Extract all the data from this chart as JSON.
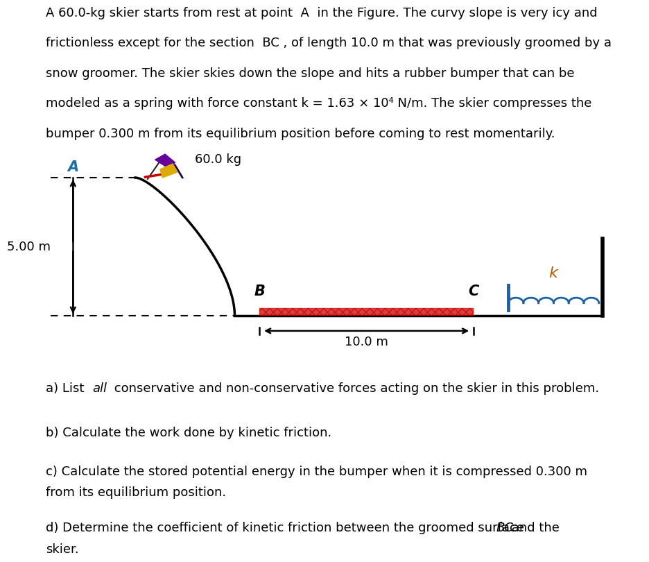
{
  "bg_color": "#ffffff",
  "fig_width": 9.16,
  "fig_height": 7.96,
  "text_color": "#000000",
  "slope_color": "#000000",
  "ground_color": "#000000",
  "friction_color": "#cc0000",
  "spring_color": "#1a5fa8",
  "spring_bar_color": "#1a5fa8",
  "wall_color": "#000000",
  "dashed_color": "#000000",
  "arrow_color": "#000000",
  "height_arrow_color": "#000000",
  "label_A": "A",
  "label_B": "B",
  "label_C": "C",
  "label_k": "k",
  "label_k_color": "#b85c00",
  "label_mass": "60.0 kg",
  "label_height": "5.00 m",
  "label_length": "10.0 m",
  "font_size_body": 13,
  "font_size_diagram": 13,
  "font_size_labels_italic": 14,
  "paragraph_lines": [
    "A 60.0-kg skier starts from rest at point  A  in the Figure. The curvy slope is very icy and",
    "frictionless except for the section  BC , of length 10.0 m that was previously groomed by a",
    "snow groomer. The skier skies down the slope and hits a rubber bumper that can be",
    "modeled as a spring with force constant k = 1.63 × 10⁴ N/m. The skier compresses the",
    "bumper 0.300 m from its equilibrium position before coming to rest momentarily."
  ],
  "qa_a_pre": "a) List ",
  "qa_a_italic": "all",
  "qa_a_post": " conservative and non-conservative forces acting on the skier in this problem.",
  "qa_b": "b) Calculate the work done by kinetic friction.",
  "qa_c1": "c) Calculate the stored potential energy in the bumper when it is compressed 0.300 m",
  "qa_c2": "from its equilibrium position.",
  "qa_d1_pre": "d) Determine the coefficient of kinetic friction between the groomed surface ",
  "qa_d1_italic": "BC",
  "qa_d1_post": " and the",
  "qa_d2": "skier."
}
